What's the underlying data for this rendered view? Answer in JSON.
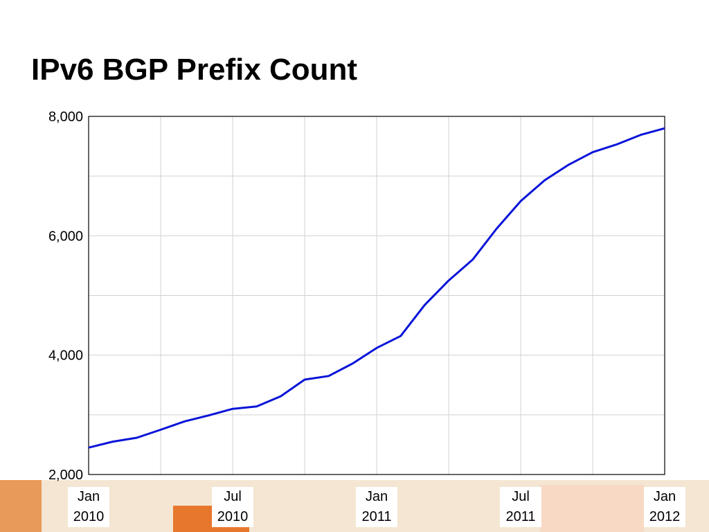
{
  "chart_data": {
    "type": "line",
    "title": "IPv6 BGP Prefix Count",
    "x": [
      "2010-01",
      "2010-02",
      "2010-03",
      "2010-04",
      "2010-05",
      "2010-06",
      "2010-07",
      "2010-08",
      "2010-09",
      "2010-10",
      "2010-11",
      "2010-12",
      "2011-01",
      "2011-02",
      "2011-03",
      "2011-04",
      "2011-05",
      "2011-06",
      "2011-07",
      "2011-08",
      "2011-09",
      "2011-10",
      "2011-11",
      "2011-12",
      "2012-01"
    ],
    "series": [
      {
        "color": "#0a14d8",
        "values": [
          2450,
          2550,
          2615,
          2750,
          2890,
          2990,
          3100,
          3140,
          3310,
          3590,
          3650,
          3860,
          4120,
          4320,
          4840,
          5250,
          5600,
          6120,
          6580,
          6930,
          7190,
          7400,
          7530,
          7690,
          7800
        ]
      }
    ],
    "xlim": [
      "2010-01",
      "2012-01"
    ],
    "xticks": [
      {
        "value": "2010-01",
        "label": "Jan 2010"
      },
      {
        "value": "2010-07",
        "label": "Jul 2010"
      },
      {
        "value": "2011-01",
        "label": "Jan 2011"
      },
      {
        "value": "2011-07",
        "label": "Jul 2011"
      },
      {
        "value": "2012-01",
        "label": "Jan 2012"
      }
    ],
    "x_minor_ticks": [
      "2010-04",
      "2010-10",
      "2011-04",
      "2011-10"
    ],
    "ylim": [
      2000,
      8000
    ],
    "yticks": [
      {
        "value": 2000,
        "label": "2,000"
      },
      {
        "value": 4000,
        "label": "4,000"
      },
      {
        "value": 6000,
        "label": "6,000"
      },
      {
        "value": 8000,
        "label": "8,000"
      }
    ],
    "y_minor_ticks": [
      3000,
      5000,
      7000
    ],
    "grid": true
  }
}
